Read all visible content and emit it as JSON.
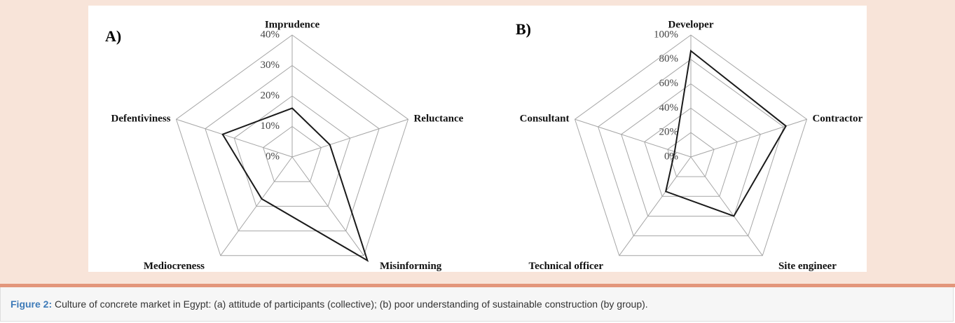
{
  "chart_data": [
    {
      "type": "radar",
      "panel": "A)",
      "categories": [
        "Imprudence",
        "Reluctance",
        "Misinforming",
        "Mediocreness",
        "Defentiviness"
      ],
      "values": [
        16,
        13,
        42,
        17,
        24
      ],
      "color": "#1a1a1a",
      "ylim": [
        0,
        40
      ],
      "yticks": [
        {
          "value": 0,
          "label": "0%"
        },
        {
          "value": 10,
          "label": "10%"
        },
        {
          "value": 20,
          "label": "20%"
        },
        {
          "value": 30,
          "label": "30%"
        },
        {
          "value": 40,
          "label": "40%"
        }
      ],
      "grid": true
    },
    {
      "type": "radar",
      "panel": "B)",
      "categories": [
        "Developer",
        "Contractor",
        "Site engineer",
        "Technical officer",
        "Consultant"
      ],
      "values": [
        87,
        82,
        60,
        35,
        14
      ],
      "color": "#1a1a1a",
      "ylim": [
        0,
        100
      ],
      "yticks": [
        {
          "value": 0,
          "label": "0%"
        },
        {
          "value": 20,
          "label": "20%"
        },
        {
          "value": 40,
          "label": "40%"
        },
        {
          "value": 60,
          "label": "60%"
        },
        {
          "value": 80,
          "label": "80%"
        },
        {
          "value": 100,
          "label": "100%"
        }
      ],
      "grid": true
    }
  ],
  "caption": {
    "label": "Figure 2:",
    "text": "Culture of concrete market in Egypt: (a) attitude of participants (collective); (b) poor understanding of sustainable construction (by group)."
  }
}
